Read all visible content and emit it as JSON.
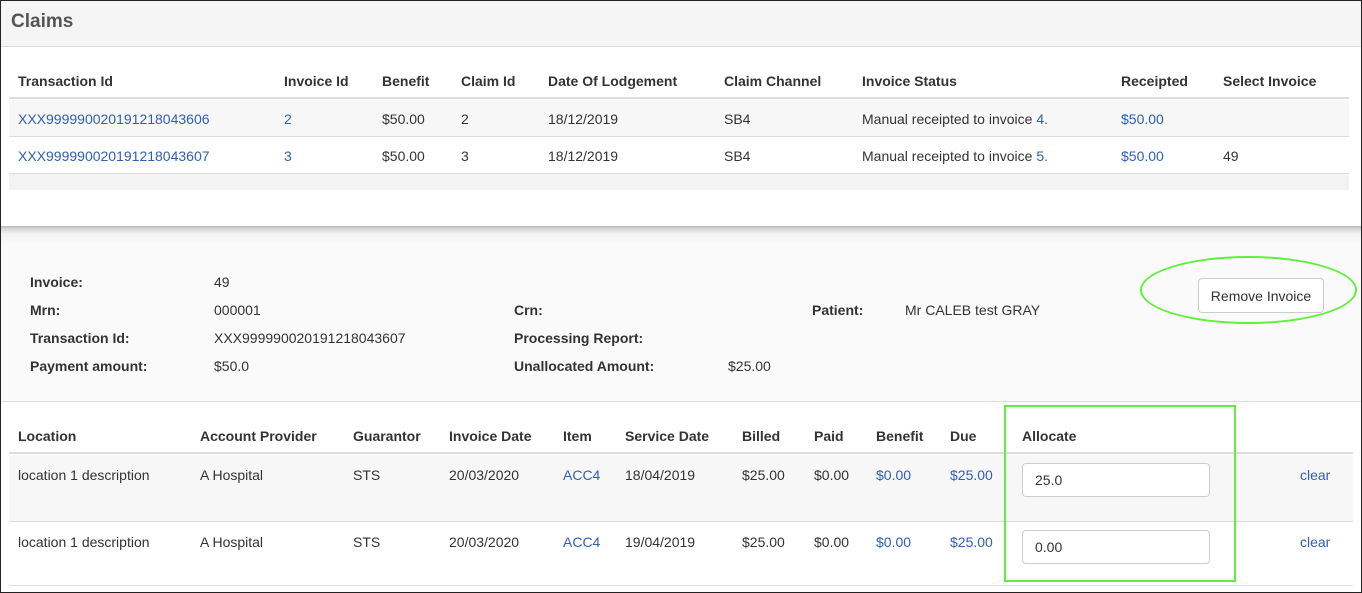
{
  "claims": {
    "title": "Claims",
    "columns": [
      "Transaction Id",
      "Invoice Id",
      "Benefit",
      "Claim Id",
      "Date Of Lodgement",
      "Claim Channel",
      "Invoice Status",
      "Receipted",
      "Select Invoice"
    ],
    "rows": [
      {
        "transaction_id": "XXX999990020191218043606",
        "invoice_id": "2",
        "benefit": "$50.00",
        "claim_id": "2",
        "date_of_lodgement": "18/12/2019",
        "claim_channel": "SB4",
        "invoice_status_text": "Manual receipted to invoice ",
        "invoice_status_link": "4.",
        "receipted": "$50.00",
        "select_invoice": ""
      },
      {
        "transaction_id": "XXX999990020191218043607",
        "invoice_id": "3",
        "benefit": "$50.00",
        "claim_id": "3",
        "date_of_lodgement": "18/12/2019",
        "claim_channel": "SB4",
        "invoice_status_text": "Manual receipted to invoice ",
        "invoice_status_link": "5.",
        "receipted": "$50.00",
        "select_invoice": "49"
      }
    ]
  },
  "invoice": {
    "invoice_label": "Invoice:",
    "invoice_value": "49",
    "mrn_label": "Mrn:",
    "mrn_value": "000001",
    "transaction_id_label": "Transaction Id:",
    "transaction_id_value": "XXX999990020191218043607",
    "payment_amount_label": "Payment amount:",
    "payment_amount_value": "$50.0",
    "crn_label": "Crn:",
    "crn_value": "",
    "processing_report_label": "Processing Report:",
    "processing_report_value": "",
    "unallocated_label": "Unallocated Amount:",
    "unallocated_value": "$25.00",
    "patient_label": "Patient:",
    "patient_value": "Mr CALEB test GRAY",
    "remove_button": "Remove Invoice"
  },
  "allocations": {
    "columns": [
      "Location",
      "Account Provider",
      "Guarantor",
      "Invoice Date",
      "Item",
      "Service Date",
      "Billed",
      "Paid",
      "Benefit",
      "Due",
      "Allocate"
    ],
    "rows": [
      {
        "location": "location 1 description",
        "account_provider": "A Hospital",
        "guarantor": "STS",
        "invoice_date": "20/03/2020",
        "item": "ACC4",
        "service_date": "18/04/2019",
        "billed": "$25.00",
        "paid": "$0.00",
        "benefit": "$0.00",
        "due": "$25.00",
        "allocate": "25.0",
        "clear": "clear"
      },
      {
        "location": "location 1 description",
        "account_provider": "A Hospital",
        "guarantor": "STS",
        "invoice_date": "20/03/2020",
        "item": "ACC4",
        "service_date": "19/04/2019",
        "billed": "$25.00",
        "paid": "$0.00",
        "benefit": "$0.00",
        "due": "$25.00",
        "allocate": "0.00",
        "clear": "clear"
      }
    ]
  },
  "colors": {
    "link": "#2f5fb5",
    "highlight": "#5ef03a"
  }
}
